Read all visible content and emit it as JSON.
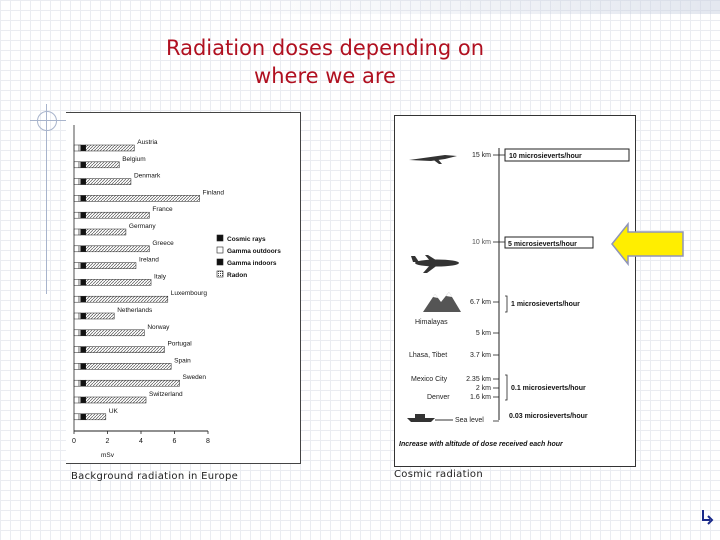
{
  "slide": {
    "title_line1": "Radiation doses depending on",
    "title_line2": "where we are",
    "caption_left": "Background radiation in Europe",
    "caption_right": "Cosmic radiation",
    "title_color": "#b01020",
    "nav_icon": "return-arrow-icon"
  },
  "chart_data": [
    {
      "type": "bar",
      "stacked": true,
      "orientation": "horizontal",
      "categories": [
        "Austria",
        "Belgium",
        "Denmark",
        "Finland",
        "France",
        "Germany",
        "Greece",
        "Ireland",
        "Italy",
        "Luxembourg",
        "Netherlands",
        "Norway",
        "Portugal",
        "Spain",
        "Sweden",
        "Switzerland",
        "UK"
      ],
      "series": [
        {
          "name": "Cosmic rays",
          "values": [
            0.3,
            0.3,
            0.3,
            0.3,
            0.3,
            0.3,
            0.3,
            0.3,
            0.3,
            0.3,
            0.3,
            0.3,
            0.3,
            0.3,
            0.3,
            0.3,
            0.3
          ]
        },
        {
          "name": "Gamma outdoors",
          "values": [
            0.1,
            0.1,
            0.1,
            0.1,
            0.1,
            0.1,
            0.1,
            0.1,
            0.1,
            0.1,
            0.1,
            0.1,
            0.1,
            0.1,
            0.1,
            0.1,
            0.1
          ]
        },
        {
          "name": "Gamma indoors",
          "values": [
            0.3,
            0.3,
            0.3,
            0.3,
            0.3,
            0.3,
            0.3,
            0.3,
            0.3,
            0.3,
            0.3,
            0.3,
            0.3,
            0.3,
            0.3,
            0.3,
            0.3
          ]
        },
        {
          "name": "Radon",
          "values": [
            2.9,
            2.0,
            2.7,
            6.8,
            3.8,
            2.4,
            3.8,
            3.0,
            3.9,
            4.9,
            1.7,
            3.5,
            4.7,
            5.1,
            5.6,
            3.6,
            1.2
          ]
        }
      ],
      "xticks": [
        "0",
        "2",
        "4",
        "6",
        "8"
      ],
      "xlim": [
        0,
        8
      ],
      "xlabel": "mSv",
      "legend_position": "right"
    },
    {
      "type": "table",
      "altitudes": [
        {
          "label": "15 km",
          "dose": "10 microsieverts/hour",
          "icon": "concorde-icon"
        },
        {
          "label": "10 km",
          "dose": "5 microsieverts/hour",
          "icon": "airplane-icon"
        },
        {
          "label": "6.7 km",
          "dose": "1 microsieverts/hour",
          "icon": "mountain-icon"
        },
        {
          "label": "5 km",
          "dose": ""
        },
        {
          "label": "3.7 km",
          "dose": ""
        },
        {
          "label": "2.35 km",
          "dose": ""
        },
        {
          "label": "2 km",
          "dose": "0.1 microsieverts/hour"
        },
        {
          "label": "1.6 km",
          "dose": ""
        },
        {
          "label": "",
          "dose": "0.03 microsieverts/hour",
          "icon": "ship-icon"
        }
      ],
      "places": [
        "Himalayas",
        "Lhasa, Tibet",
        "Mexico City",
        "Denver",
        "Sea level"
      ],
      "footer": "Increase with altitude of dose received each hour",
      "highlight_color": "#ffee00",
      "highlight_row": "5 microsieverts/hour"
    }
  ]
}
